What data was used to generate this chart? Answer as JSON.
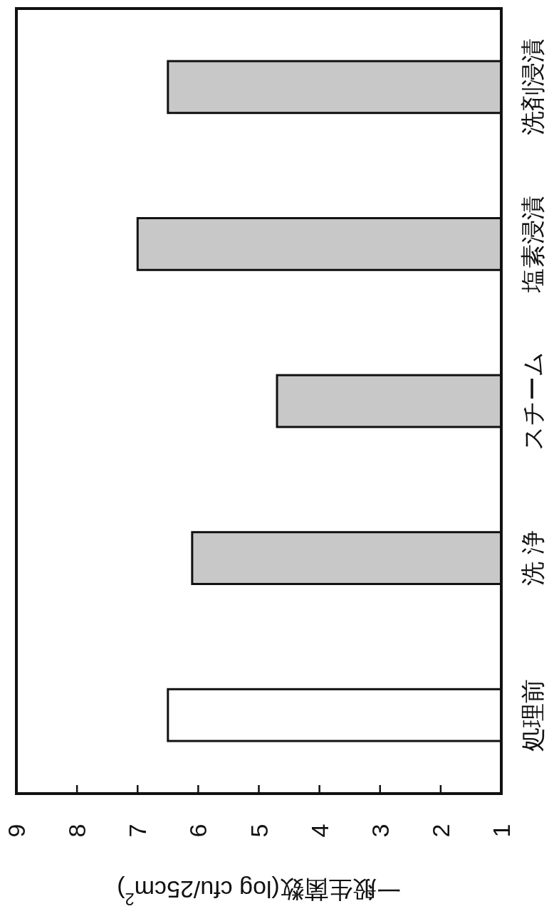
{
  "chart_data": {
    "type": "bar",
    "orientation": "horizontal",
    "xlabel": "一般生菌数(log cfu/25cm$^{2}$)",
    "categories": [
      "洗剤浸漬",
      "塩素浸漬",
      "スチーム",
      "洗 浄",
      "処理前"
    ],
    "values": [
      6.5,
      7.0,
      4.7,
      6.1,
      6.5
    ],
    "colors": [
      "#c8c8c8",
      "#c8c8c8",
      "#c8c8c8",
      "#c8c8c8",
      "#ffffff"
    ],
    "xlim": [
      9,
      1
    ],
    "xticks": [
      9,
      8,
      7,
      6,
      5,
      4,
      3,
      2,
      1
    ],
    "grid": false
  }
}
